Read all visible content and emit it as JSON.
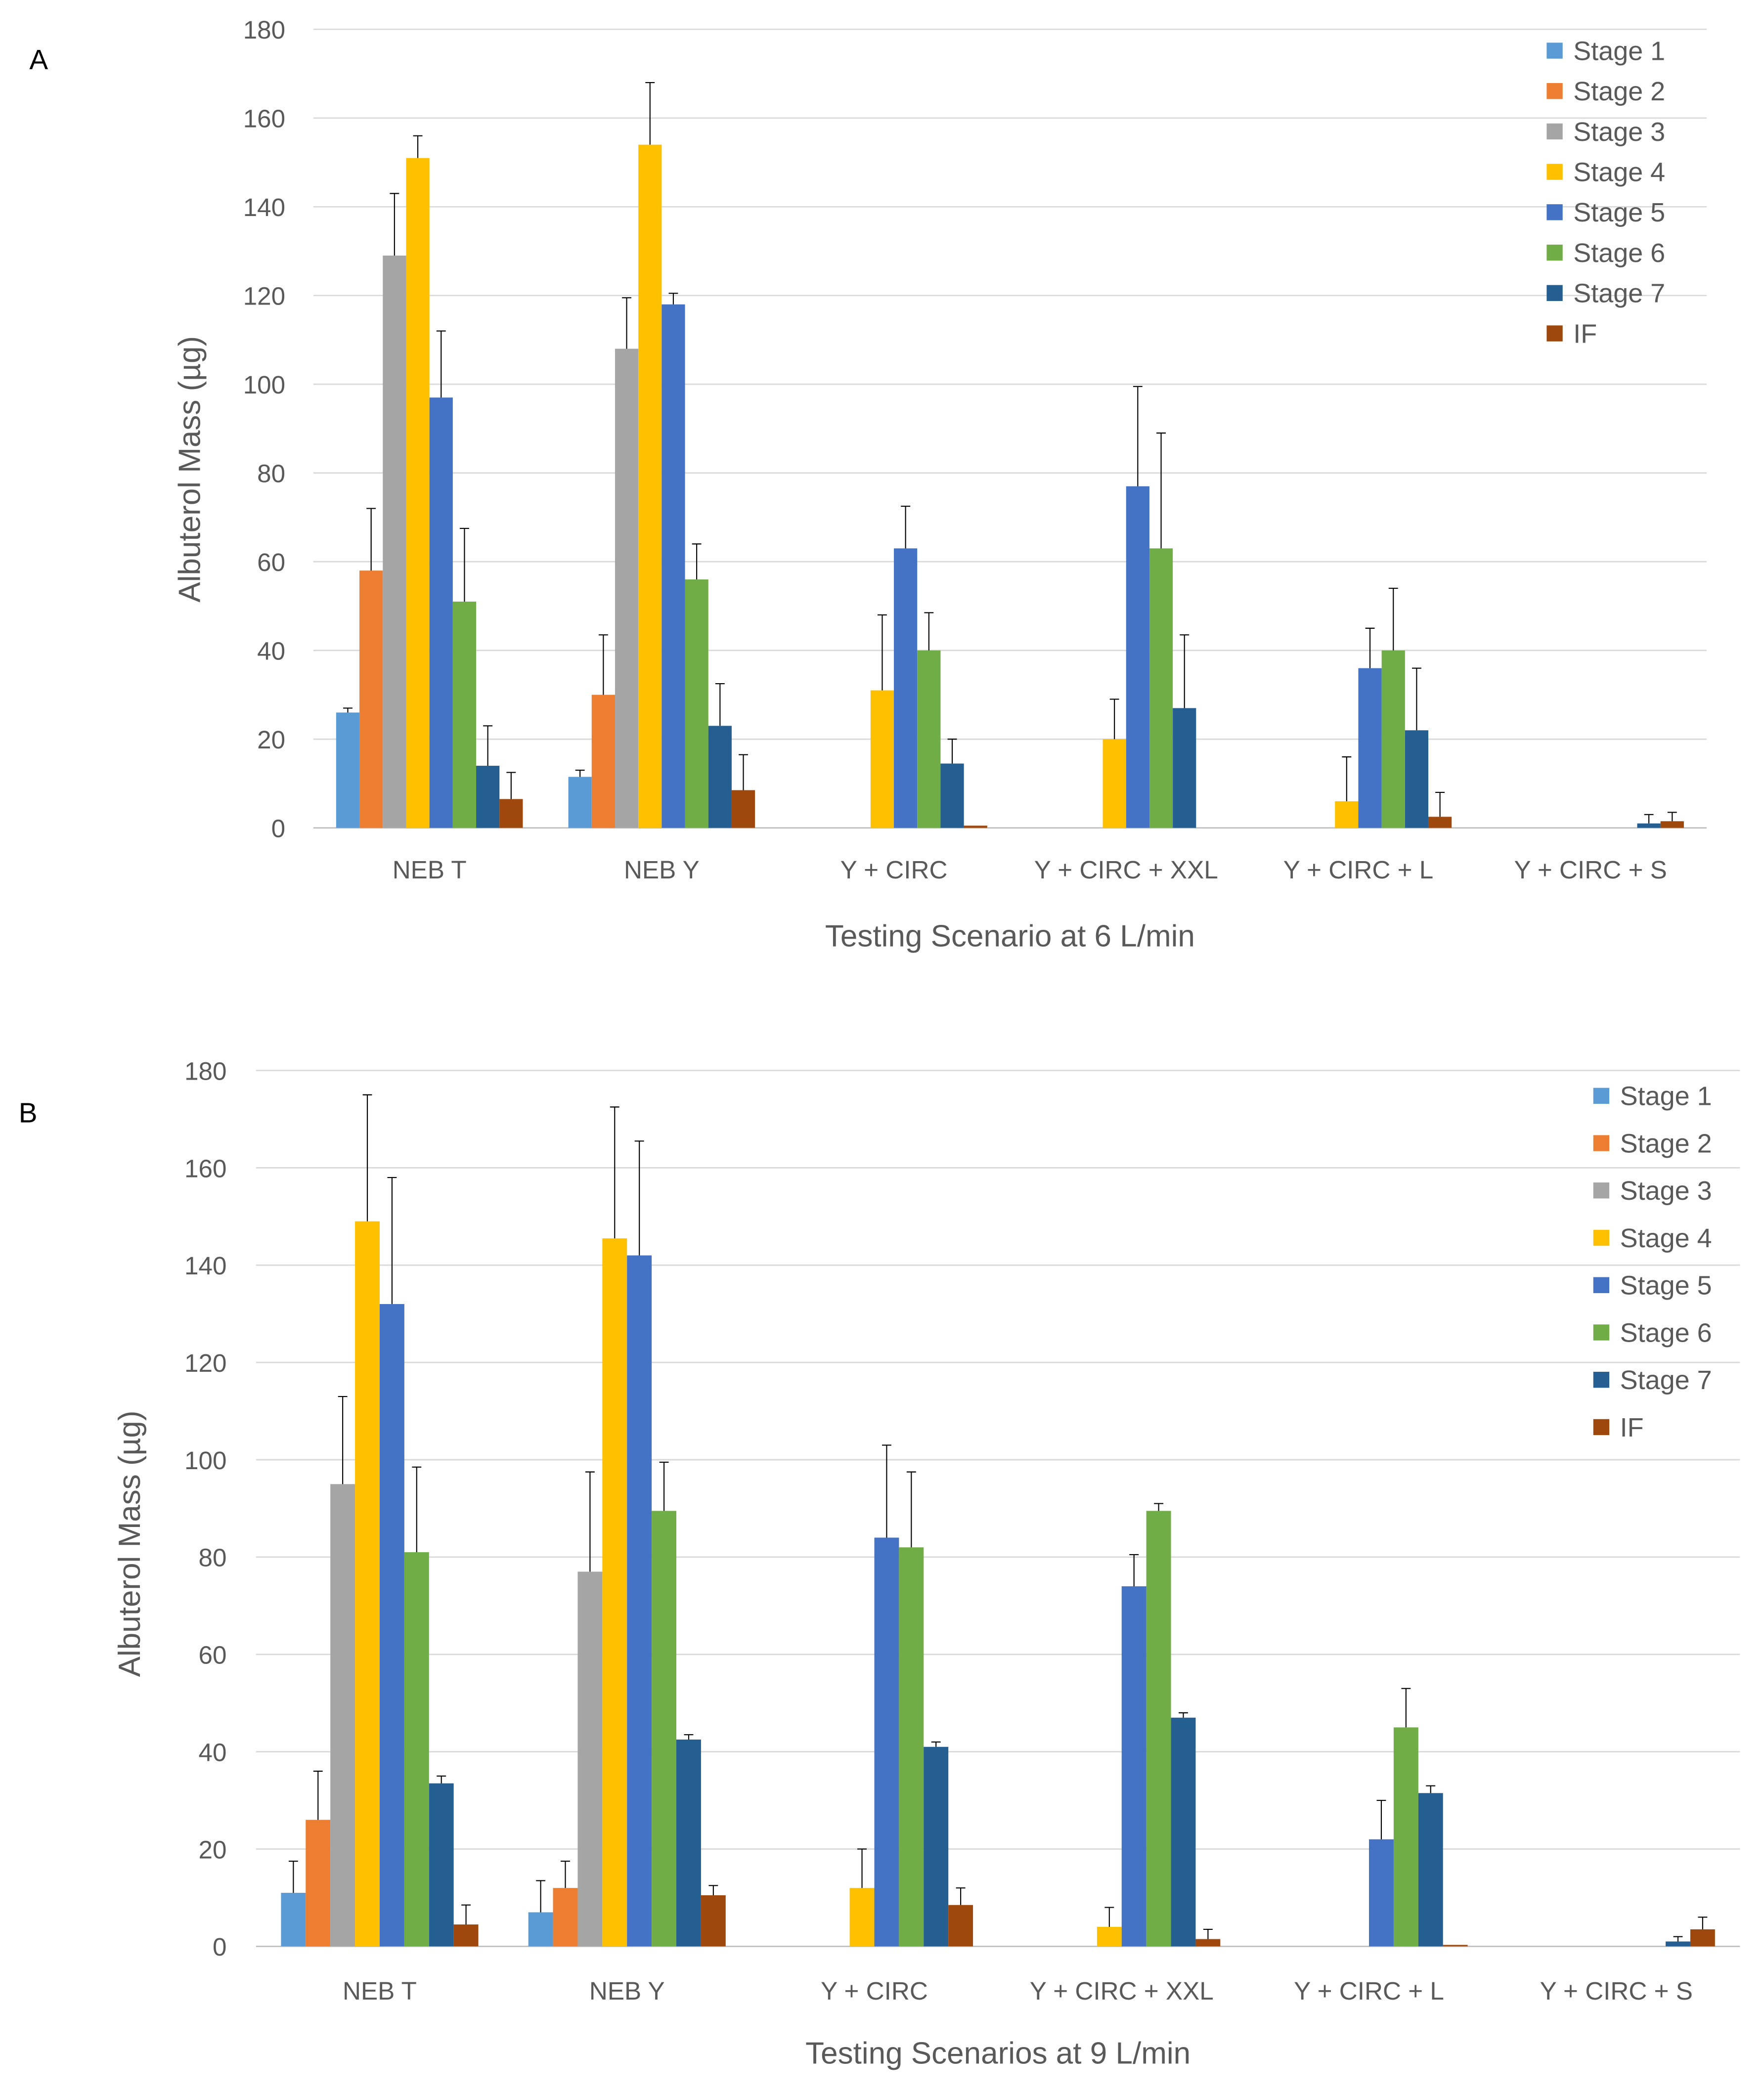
{
  "colors": {
    "Stage 1": "#5B9BD5",
    "Stage 2": "#ED7D31",
    "Stage 3": "#A5A5A5",
    "Stage 4": "#FFC000",
    "Stage 5": "#4472C4",
    "Stage 6": "#70AD47",
    "Stage 7": "#255E91",
    "IF": "#9E480E"
  },
  "chart_data": [
    {
      "type": "bar",
      "panel_label": "A",
      "title": "",
      "xlabel": "Testing Scenario at 6 L/min",
      "ylabel": "Albuterol Mass (µg)",
      "ylim": [
        0,
        180
      ],
      "yticks": [
        0,
        20,
        40,
        60,
        80,
        100,
        120,
        140,
        160,
        180
      ],
      "grid": true,
      "legend_position": "top-right",
      "categories": [
        "NEB T",
        "NEB Y",
        "Y + CIRC",
        "Y + CIRC + XXL",
        "Y + CIRC + L",
        "Y + CIRC + S"
      ],
      "series": [
        {
          "name": "Stage 1",
          "values": [
            26,
            11.5,
            0,
            0,
            0,
            0
          ],
          "err_upper": [
            27,
            13,
            0,
            0,
            0,
            0
          ]
        },
        {
          "name": "Stage 2",
          "values": [
            58,
            30,
            0,
            0,
            0,
            0
          ],
          "err_upper": [
            72,
            43.5,
            0,
            0,
            0,
            0
          ]
        },
        {
          "name": "Stage 3",
          "values": [
            129,
            108,
            0,
            0,
            0,
            0
          ],
          "err_upper": [
            143,
            119.5,
            0,
            0,
            0,
            0
          ]
        },
        {
          "name": "Stage 4",
          "values": [
            151,
            154,
            31,
            20,
            6,
            0
          ],
          "err_upper": [
            156,
            168,
            48,
            29,
            16,
            0
          ]
        },
        {
          "name": "Stage 5",
          "values": [
            97,
            118,
            63,
            77,
            36,
            0
          ],
          "err_upper": [
            112,
            120.5,
            72.5,
            99.5,
            45,
            0
          ]
        },
        {
          "name": "Stage 6",
          "values": [
            51,
            56,
            40,
            63,
            40,
            0
          ],
          "err_upper": [
            67.5,
            64,
            48.5,
            89,
            54,
            0
          ]
        },
        {
          "name": "Stage 7",
          "values": [
            14,
            23,
            14.5,
            27,
            22,
            1
          ],
          "err_upper": [
            23,
            32.5,
            20,
            43.5,
            36,
            3
          ]
        },
        {
          "name": "IF",
          "values": [
            6.5,
            8.5,
            0.5,
            0,
            2.5,
            1.5
          ],
          "err_upper": [
            12.5,
            16.5,
            0.5,
            0,
            8,
            3.5
          ]
        }
      ]
    },
    {
      "type": "bar",
      "panel_label": "B",
      "title": "",
      "xlabel": "Testing Scenarios at 9 L/min",
      "ylabel": "Albuterol Mass (µg)",
      "ylim": [
        0,
        180
      ],
      "yticks": [
        0,
        20,
        40,
        60,
        80,
        100,
        120,
        140,
        160,
        180
      ],
      "grid": true,
      "legend_position": "top-right",
      "categories": [
        "NEB T",
        "NEB Y",
        "Y + CIRC",
        "Y + CIRC + XXL",
        "Y + CIRC + L",
        "Y + CIRC + S"
      ],
      "series": [
        {
          "name": "Stage 1",
          "values": [
            11,
            7,
            0,
            0,
            0,
            0
          ],
          "err_upper": [
            17.5,
            13.5,
            0,
            0,
            0,
            0
          ]
        },
        {
          "name": "Stage 2",
          "values": [
            26,
            12,
            0,
            0,
            0,
            0
          ],
          "err_upper": [
            36,
            17.5,
            0,
            0,
            0,
            0
          ]
        },
        {
          "name": "Stage 3",
          "values": [
            95,
            77,
            0,
            0,
            0,
            0
          ],
          "err_upper": [
            113,
            97.5,
            0,
            0,
            0,
            0
          ]
        },
        {
          "name": "Stage 4",
          "values": [
            149,
            145.5,
            12,
            4,
            0,
            0
          ],
          "err_upper": [
            175,
            172.5,
            20,
            8,
            0,
            0
          ]
        },
        {
          "name": "Stage 5",
          "values": [
            132,
            142,
            84,
            74,
            22,
            0
          ],
          "err_upper": [
            158,
            165.5,
            103,
            80.5,
            30,
            0
          ]
        },
        {
          "name": "Stage 6",
          "values": [
            81,
            89.5,
            82,
            89.5,
            45,
            0
          ],
          "err_upper": [
            98.5,
            99.5,
            97.5,
            91,
            53,
            0
          ]
        },
        {
          "name": "Stage 7",
          "values": [
            33.5,
            42.5,
            41,
            47,
            31.5,
            1
          ],
          "err_upper": [
            35,
            43.5,
            42,
            48,
            33,
            2
          ]
        },
        {
          "name": "IF",
          "values": [
            4.5,
            10.5,
            8.5,
            1.5,
            0.3,
            3.5
          ],
          "err_upper": [
            8.5,
            12.5,
            12,
            3.5,
            0.3,
            6
          ]
        }
      ]
    }
  ]
}
